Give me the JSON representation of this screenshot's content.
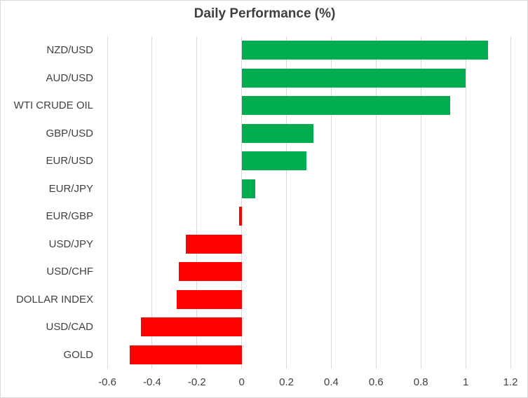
{
  "chart_data": {
    "type": "bar",
    "orientation": "horizontal",
    "title": "Daily Performance (%)",
    "categories": [
      "NZD/USD",
      "AUD/USD",
      "WTI CRUDE OIL",
      "GBP/USD",
      "EUR/USD",
      "EUR/JPY",
      "EUR/GBP",
      "USD/JPY",
      "USD/CHF",
      "DOLLAR INDEX",
      "USD/CAD",
      "GOLD"
    ],
    "values": [
      1.1,
      1.0,
      0.93,
      0.32,
      0.29,
      0.06,
      -0.01,
      -0.25,
      -0.28,
      -0.29,
      -0.45,
      -0.5
    ],
    "xlabel": "",
    "ylabel": "",
    "xlim": [
      -0.6,
      1.2
    ],
    "xticks": [
      -0.6,
      -0.4,
      -0.2,
      0,
      0.2,
      0.4,
      0.6,
      0.8,
      1,
      1.2
    ],
    "xtick_labels": [
      "-0.6",
      "-0.4",
      "-0.2",
      "0",
      "0.2",
      "0.4",
      "0.6",
      "0.8",
      "1",
      "1.2"
    ],
    "grid": "vertical-only",
    "legend": "none",
    "colors": {
      "positive": "#00AC4E",
      "negative": "#FF0000",
      "gridline": "#D9D9D9",
      "text": "#404040",
      "title_text": "#3F3F3F",
      "border": "#D9D9D9",
      "background": "#FFFFFF"
    }
  }
}
